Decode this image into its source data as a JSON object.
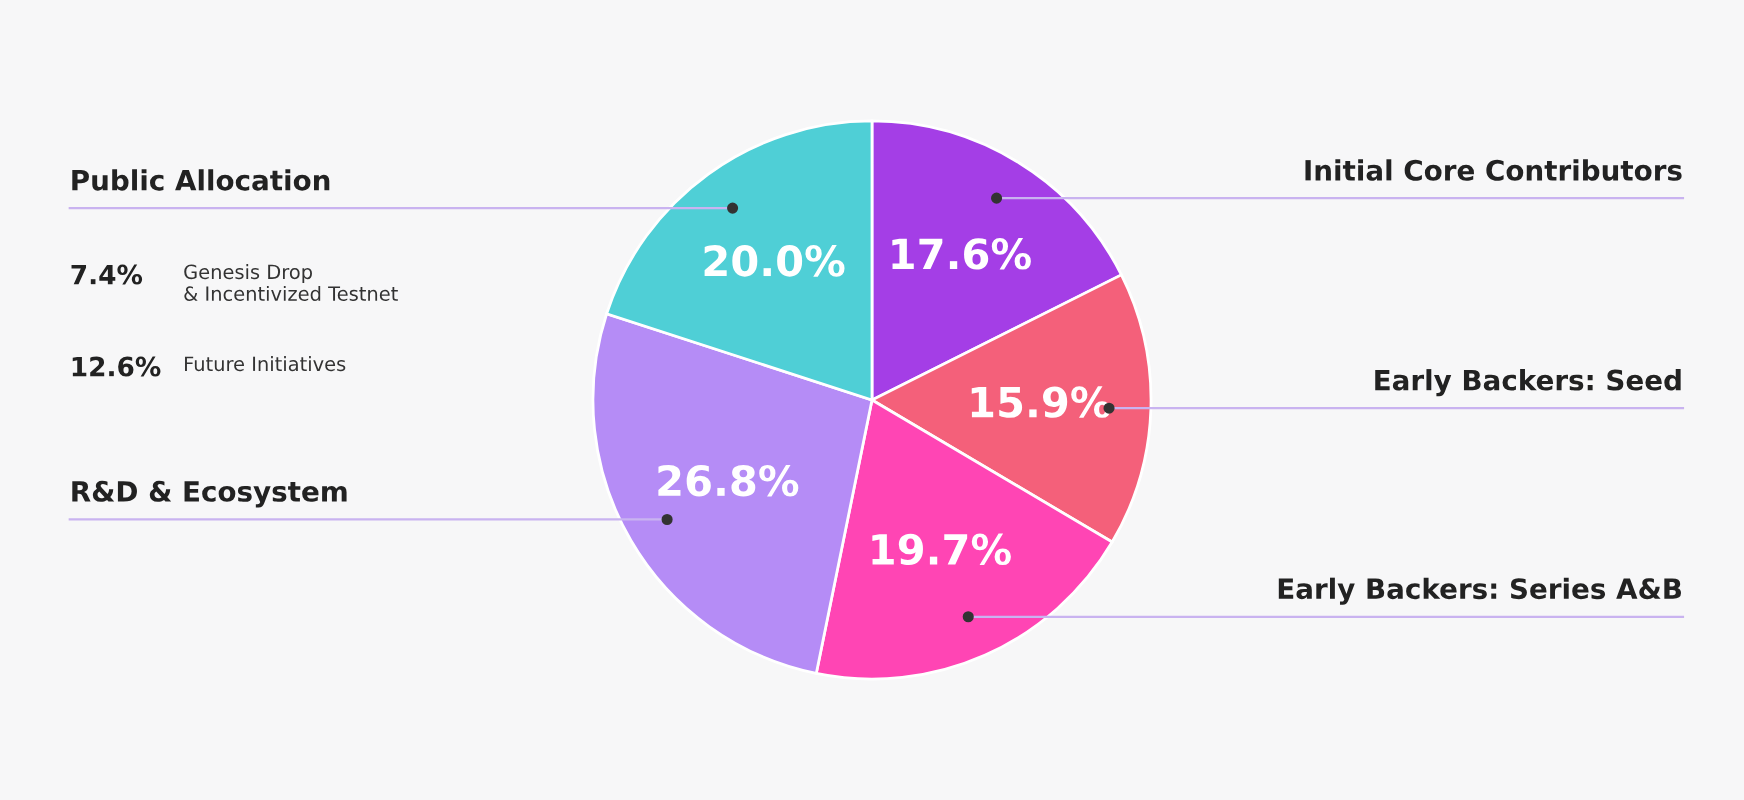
{
  "chart_data": {
    "type": "pie",
    "categories": [
      "Initial Core Contributors",
      "Early Backers: Seed",
      "Early Backers: Series A&B",
      "R&D & Ecosystem",
      "Public Allocation"
    ],
    "values": [
      17.6,
      15.9,
      19.7,
      26.8,
      20.0
    ],
    "value_labels": [
      "17.6%",
      "15.9%",
      "19.7%",
      "26.8%",
      "20.0%"
    ],
    "colors": [
      "#a43ee6",
      "#f4607a",
      "#ff45b4",
      "#b58cf6",
      "#4fcfd6"
    ],
    "annotations": [
      "7.4%",
      "Genesis Drop\n& Incentivized Testnet",
      "12.6%",
      "Future Initiatives"
    ]
  }
}
